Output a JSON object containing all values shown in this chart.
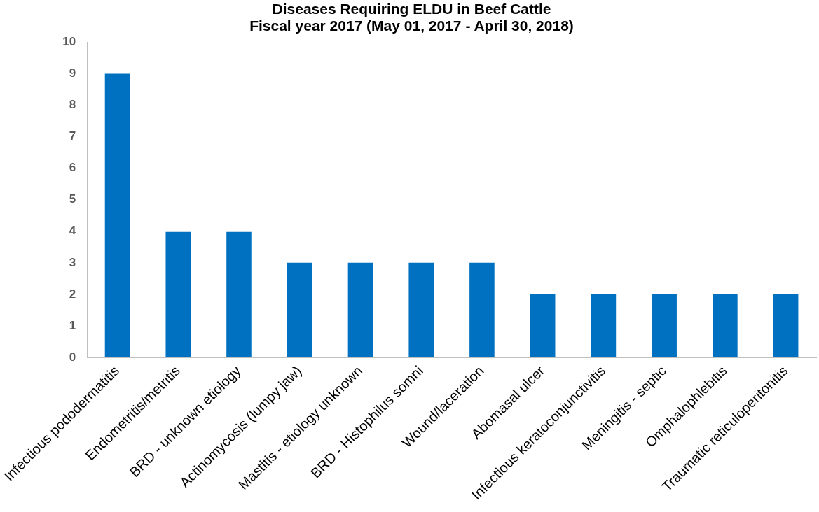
{
  "chart_data": {
    "type": "bar",
    "title": "Diseases Requiring ELDU in Beef Cattle",
    "subtitle": "Fiscal year 2017 (May 01, 2017 - April 30, 2018)",
    "categories": [
      "Infectious pododermatitis",
      "Endometritis/metritis",
      "BRD - unknown etiology",
      "Actinomycosis (lumpy jaw)",
      "Mastitis - etiology unknown",
      "BRD - Histophilus somni",
      "Wound/laceration",
      "Abomasal ulcer",
      "Infectious keratoconjunctivitis",
      "Meningitis - septic",
      "Omphalophlebitis",
      "Traumatic reticuloperitonitis"
    ],
    "values": [
      9,
      4,
      4,
      3,
      3,
      3,
      3,
      2,
      2,
      2,
      2,
      2
    ],
    "color": "#0070c0",
    "ylim": [
      0,
      10
    ],
    "yticks": [
      0,
      1,
      2,
      3,
      4,
      5,
      6,
      7,
      8,
      9,
      10
    ],
    "grid": false,
    "legend": false
  }
}
